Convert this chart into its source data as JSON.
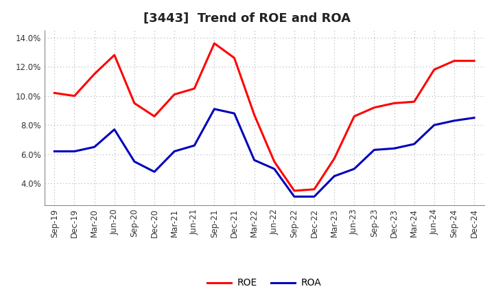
{
  "title": "[3443]  Trend of ROE and ROA",
  "x_labels": [
    "Sep-19",
    "Dec-19",
    "Mar-20",
    "Jun-20",
    "Sep-20",
    "Dec-20",
    "Mar-21",
    "Jun-21",
    "Sep-21",
    "Dec-21",
    "Mar-22",
    "Jun-22",
    "Sep-22",
    "Dec-22",
    "Mar-23",
    "Jun-23",
    "Sep-23",
    "Dec-23",
    "Mar-24",
    "Jun-24",
    "Sep-24",
    "Dec-24"
  ],
  "ROE": [
    10.2,
    10.0,
    11.5,
    12.8,
    9.5,
    8.6,
    10.1,
    10.5,
    13.6,
    12.6,
    8.7,
    5.5,
    3.5,
    3.6,
    5.7,
    8.6,
    9.2,
    9.5,
    9.6,
    11.8,
    12.4,
    12.4
  ],
  "ROA": [
    6.2,
    6.2,
    6.5,
    7.7,
    5.5,
    4.8,
    6.2,
    6.6,
    9.1,
    8.8,
    5.6,
    5.0,
    3.1,
    3.1,
    4.5,
    5.0,
    6.3,
    6.4,
    6.7,
    8.0,
    8.3,
    8.5
  ],
  "ROE_color": "#FF0000",
  "ROA_color": "#0000BB",
  "ylim_min": 2.5,
  "ylim_max": 14.5,
  "yticks": [
    4.0,
    6.0,
    8.0,
    10.0,
    12.0,
    14.0
  ],
  "background_color": "#FFFFFF",
  "grid_color": "#AAAAAA",
  "title_fontsize": 13,
  "legend_fontsize": 10,
  "axis_fontsize": 8.5
}
